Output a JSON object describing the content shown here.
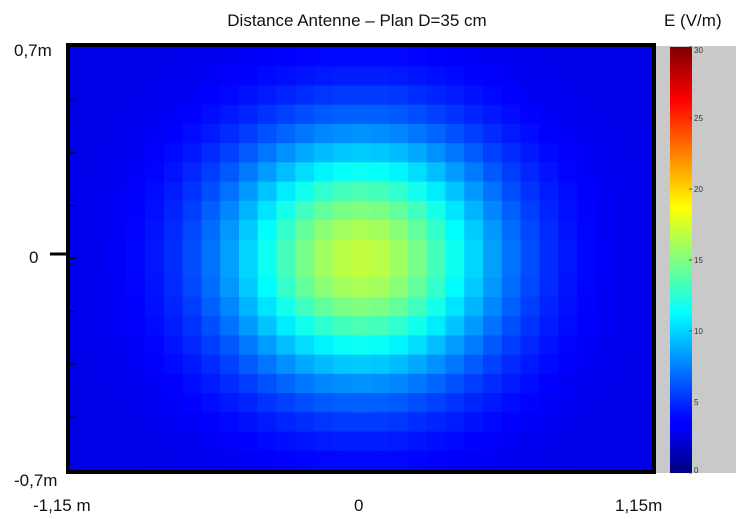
{
  "chart_data": {
    "type": "heatmap",
    "title": "Distance Antenne – Plan D=35 cm",
    "colorbar_label": "E (V/m)",
    "colorbar_ticks": [
      "0",
      "5",
      "10",
      "15",
      "20",
      "25",
      "30"
    ],
    "colorbar_range": [
      0,
      30
    ],
    "colormap": "jet",
    "x_tick_labels": [
      "-1,15 m",
      "0",
      "1,15m"
    ],
    "y_tick_labels": [
      "0,7m",
      "0",
      "-0,7m"
    ],
    "x_range_m": [
      -1.15,
      1.15
    ],
    "y_range_m": [
      -0.7,
      0.7
    ],
    "grid_cols": 31,
    "grid_rows": 22,
    "field": {
      "peak_value": 17,
      "background_value": 3,
      "peak_x_m": 0.0,
      "peak_y_m": 0.0,
      "spread_x_m": 0.38,
      "spread_y_m": 0.29
    }
  }
}
